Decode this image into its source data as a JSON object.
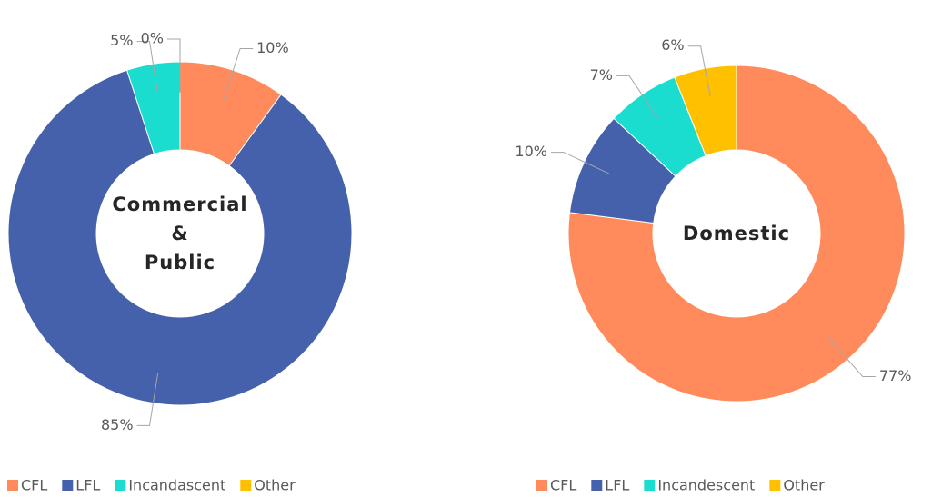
{
  "chart_data": [
    {
      "type": "donut",
      "title": "Commercial & Public",
      "categories": [
        "CFL",
        "LFL",
        "Incandascent",
        "Other"
      ],
      "values": [
        10,
        85,
        5,
        0
      ],
      "value_labels": [
        "10%",
        "85%",
        "5%",
        "0%"
      ],
      "colors": [
        "#ff8a5b",
        "#4561ab",
        "#1adccf",
        "#ffc000"
      ],
      "legend": "bottom"
    },
    {
      "type": "donut",
      "title": "Domestic",
      "categories": [
        "CFL",
        "LFL",
        "Incandescent",
        "Other"
      ],
      "values": [
        77,
        10,
        7,
        6
      ],
      "value_labels": [
        "77%",
        "10%",
        "7%",
        "6%"
      ],
      "colors": [
        "#ff8a5b",
        "#4561ab",
        "#1adccf",
        "#ffc000"
      ],
      "legend": "bottom"
    }
  ]
}
